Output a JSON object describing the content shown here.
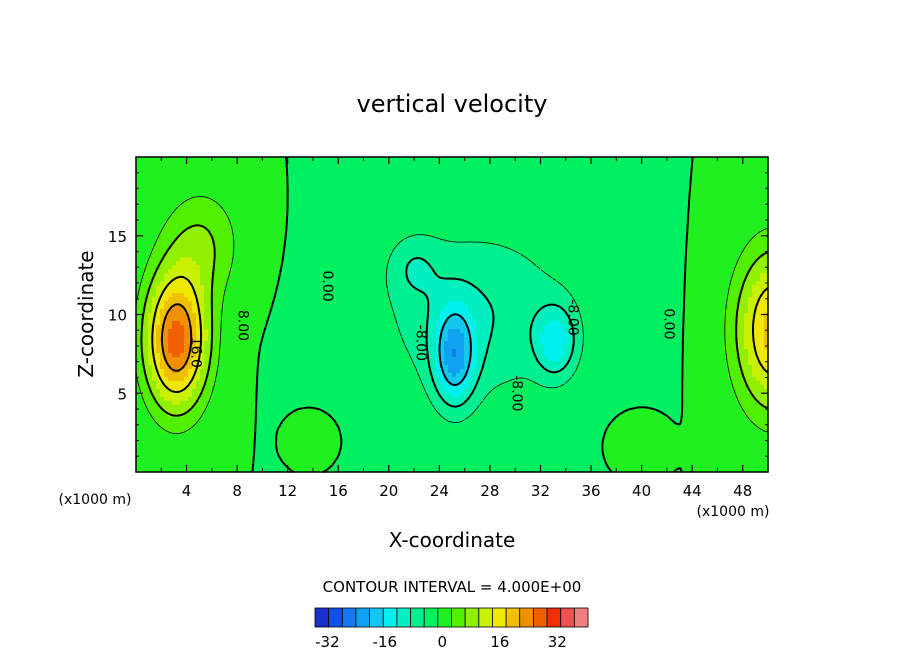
{
  "chart_data": {
    "type": "heatmap",
    "title": "vertical velocity",
    "xlabel": "X-coordinate",
    "ylabel": "Z-coordinate",
    "x_unit_label": "(x1000 m)",
    "x_unit_label_right": "(x1000 m)",
    "xlim": [
      0,
      50
    ],
    "ylim": [
      0,
      20
    ],
    "x_ticks": [
      4,
      8,
      12,
      16,
      20,
      24,
      28,
      32,
      36,
      40,
      44,
      48
    ],
    "y_ticks": [
      5,
      10,
      15
    ],
    "contour_interval_text": "CONTOUR INTERVAL = 4.000E+00",
    "contour_labels": [
      {
        "text": "16.0",
        "x": 4.4,
        "y": 7.6
      },
      {
        "text": "8.00",
        "x": 8.1,
        "y": 9.3
      },
      {
        "text": "0.00",
        "x": 14.8,
        "y": 11.8
      },
      {
        "text": "-8.00",
        "x": 22.2,
        "y": 8.2
      },
      {
        "text": "-8.00",
        "x": 29.8,
        "y": 5.0
      },
      {
        "text": "-8.00",
        "x": 34.2,
        "y": 9.8
      },
      {
        "text": "0.00",
        "x": 41.8,
        "y": 9.4
      }
    ],
    "colorbar": {
      "levels": [
        -40,
        -36,
        -32,
        -28,
        -24,
        -20,
        -16,
        -12,
        -8,
        -4,
        0,
        4,
        8,
        12,
        16,
        20,
        24,
        28,
        32,
        36,
        40
      ],
      "colors": [
        "#7a1fa2",
        "#2a1fb0",
        "#1a2fd0",
        "#1450e8",
        "#1478f0",
        "#10a0f0",
        "#10c8f0",
        "#00f0f0",
        "#00f0c0",
        "#00f090",
        "#00f060",
        "#20f020",
        "#50f000",
        "#90f000",
        "#c8f000",
        "#f0e800",
        "#f0c000",
        "#f09000",
        "#f06000",
        "#f03000",
        "#f05050",
        "#f08080",
        "#f8a8a8"
      ],
      "tick_labels": [
        "-32",
        "-16",
        "0",
        "16",
        "32"
      ],
      "tick_values": [
        -32,
        -16,
        0,
        16,
        32
      ]
    },
    "field_blobs": [
      {
        "x": 3.2,
        "y": 8.4,
        "sx": 2.4,
        "sy": 4.2,
        "amp": 30
      },
      {
        "x": 5.2,
        "y": 14.5,
        "sx": 3.0,
        "sy": 3.5,
        "amp": 8
      },
      {
        "x": 50.5,
        "y": 9.0,
        "sx": 3.0,
        "sy": 5.0,
        "amp": 22
      },
      {
        "x": 25.2,
        "y": 7.4,
        "sx": 1.6,
        "sy": 3.0,
        "amp": -18
      },
      {
        "x": 33.2,
        "y": 8.3,
        "sx": 1.6,
        "sy": 2.2,
        "amp": -12
      },
      {
        "x": 27.0,
        "y": 10.0,
        "sx": 7.5,
        "sy": 5.5,
        "amp": -8
      },
      {
        "x": 22.0,
        "y": 13.0,
        "sx": 2.0,
        "sy": 2.0,
        "amp": -5
      },
      {
        "x": 14.0,
        "y": 2.2,
        "sx": 1.2,
        "sy": 1.0,
        "amp": 4
      },
      {
        "x": 39.5,
        "y": 2.0,
        "sx": 1.5,
        "sy": 1.2,
        "amp": 3
      }
    ],
    "grid": false
  }
}
